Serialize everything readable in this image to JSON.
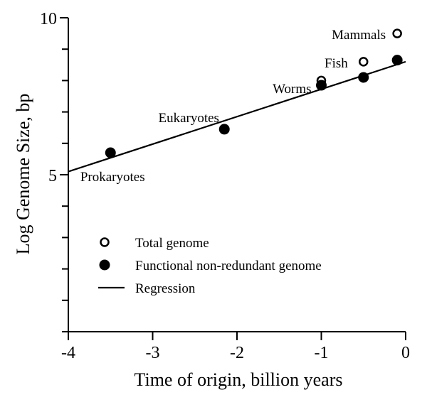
{
  "chart_data": {
    "type": "scatter",
    "xlabel": "Time of origin, billion years",
    "ylabel": "Log Genome Size, bp",
    "xlim": [
      -4,
      0
    ],
    "ylim": [
      0,
      10
    ],
    "x_ticks": [
      -4,
      -3,
      -2,
      -1,
      0
    ],
    "x_tick_labels": [
      "-4",
      "-3",
      "-2",
      "-1",
      "0"
    ],
    "y_minor_ticks": [
      0,
      1,
      2,
      3,
      4,
      5,
      6,
      7,
      8,
      9,
      10
    ],
    "y_tick_labels": [
      {
        "value": 5,
        "label": "5"
      },
      {
        "value": 10,
        "label": "10"
      }
    ],
    "grid": false,
    "legend_position": "bottom-left",
    "series": [
      {
        "name": "Total genome",
        "marker": "open-circle",
        "points": [
          {
            "x": -1.0,
            "y": 8.0
          },
          {
            "x": -0.5,
            "y": 8.6
          },
          {
            "x": -0.1,
            "y": 9.5
          }
        ]
      },
      {
        "name": "Functional non-redundant genome",
        "marker": "filled-circle",
        "points": [
          {
            "x": -3.5,
            "y": 5.7
          },
          {
            "x": -2.15,
            "y": 6.45
          },
          {
            "x": -1.0,
            "y": 7.85
          },
          {
            "x": -0.5,
            "y": 8.1
          },
          {
            "x": -0.1,
            "y": 8.65
          }
        ]
      },
      {
        "name": "Regression",
        "marker": "line",
        "line": {
          "x1": -4,
          "y1": 5.1,
          "x2": 0,
          "y2": 8.6
        }
      }
    ],
    "annotations": [
      {
        "text": "Prokaryotes",
        "x": -3.5,
        "y": 5.7
      },
      {
        "text": "Eukaryotes",
        "x": -2.15,
        "y": 6.45
      },
      {
        "text": "Worms",
        "x": -1.0,
        "y": 7.85
      },
      {
        "text": "Fish",
        "x": -0.5,
        "y": 8.6
      },
      {
        "text": "Mammals",
        "x": -0.1,
        "y": 9.5
      }
    ]
  }
}
